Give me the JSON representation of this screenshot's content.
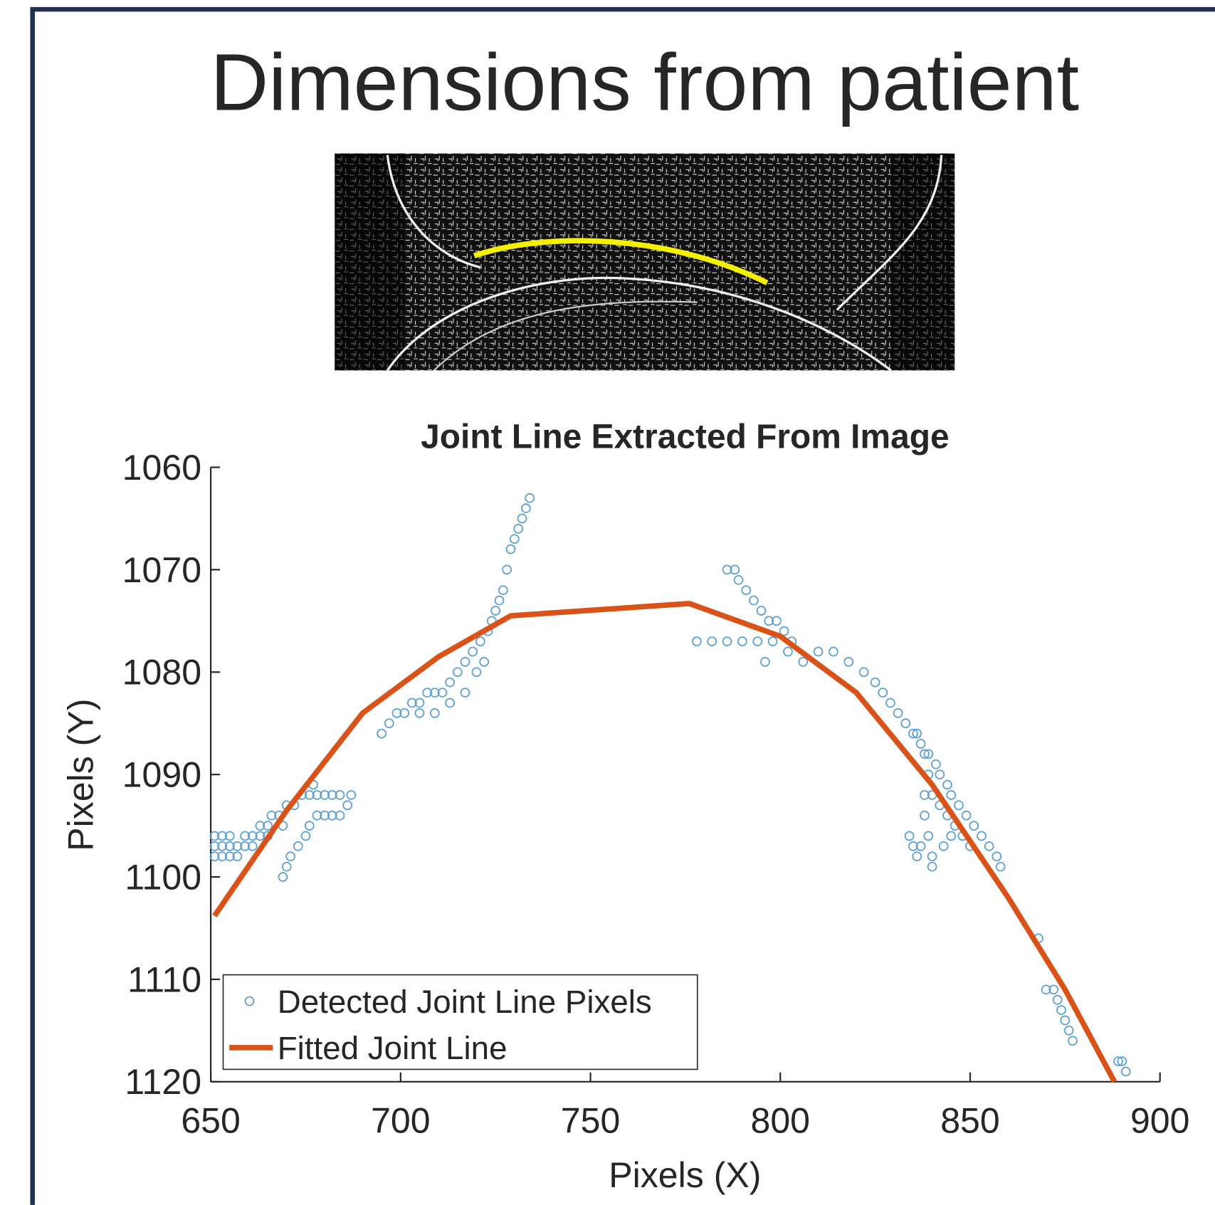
{
  "title": "Dimensions from patient",
  "chart_data": {
    "type": "scatter",
    "title": "Joint Line Extracted From Image",
    "xlabel": "Pixels (X)",
    "ylabel": "Pixels (Y)",
    "xlim": [
      650,
      900
    ],
    "ylim": [
      1060,
      1120
    ],
    "y_reversed": true,
    "xticks": [
      650,
      700,
      750,
      800,
      850,
      900
    ],
    "yticks": [
      1060,
      1070,
      1080,
      1090,
      1100,
      1110,
      1120
    ],
    "legend_position": "lower left",
    "series": [
      {
        "name": "Detected Joint Line Pixels",
        "type": "scatter",
        "color": "#5a9fd6",
        "x": [
          651,
          651,
          651,
          653,
          653,
          653,
          655,
          655,
          655,
          657,
          657,
          659,
          659,
          661,
          661,
          663,
          663,
          665,
          665,
          666,
          668,
          669,
          670,
          672,
          674,
          676,
          678,
          680,
          682,
          684,
          686,
          687,
          669,
          670,
          671,
          673,
          675,
          676,
          678,
          680,
          682,
          684,
          677,
          695,
          697,
          699,
          701,
          703,
          705,
          707,
          709,
          711,
          713,
          715,
          717,
          719,
          721,
          723,
          724,
          725,
          726,
          727,
          728,
          729,
          730,
          731,
          732,
          733,
          734,
          705,
          709,
          713,
          717,
          720,
          722,
          786,
          788,
          789,
          791,
          793,
          795,
          797,
          799,
          801,
          803,
          778,
          782,
          786,
          790,
          794,
          796,
          798,
          802,
          806,
          810,
          814,
          818,
          822,
          825,
          827,
          829,
          831,
          833,
          835,
          837,
          839,
          841,
          842,
          844,
          845,
          847,
          849,
          851,
          853,
          855,
          857,
          858,
          836,
          838,
          839,
          840,
          842,
          844,
          846,
          848,
          850,
          838,
          838,
          839,
          840,
          840,
          843,
          845,
          834,
          835,
          836,
          837,
          868,
          870,
          872,
          873,
          874,
          875,
          876,
          877,
          889,
          890,
          891
        ],
        "values": [
          1096,
          1097,
          1098,
          1096,
          1097,
          1098,
          1096,
          1097,
          1098,
          1097,
          1098,
          1096,
          1097,
          1096,
          1097,
          1095,
          1096,
          1095,
          1096,
          1094,
          1094,
          1095,
          1093,
          1093,
          1092,
          1092,
          1092,
          1092,
          1092,
          1092,
          1093,
          1092,
          1100,
          1099,
          1098,
          1097,
          1096,
          1095,
          1094,
          1094,
          1094,
          1094,
          1091,
          1086,
          1085,
          1084,
          1084,
          1083,
          1083,
          1082,
          1082,
          1082,
          1081,
          1080,
          1079,
          1078,
          1077,
          1076,
          1075,
          1074,
          1073,
          1072,
          1070,
          1068,
          1067,
          1066,
          1065,
          1064,
          1063,
          1084,
          1084,
          1083,
          1082,
          1080,
          1079,
          1070,
          1070,
          1071,
          1072,
          1073,
          1074,
          1075,
          1075,
          1076,
          1077,
          1077,
          1077,
          1077,
          1077,
          1077,
          1079,
          1077,
          1078,
          1079,
          1078,
          1078,
          1079,
          1080,
          1081,
          1082,
          1083,
          1084,
          1085,
          1086,
          1087,
          1088,
          1089,
          1090,
          1091,
          1092,
          1093,
          1094,
          1095,
          1096,
          1097,
          1098,
          1099,
          1086,
          1088,
          1090,
          1092,
          1093,
          1094,
          1095,
          1096,
          1097,
          1092,
          1094,
          1096,
          1098,
          1099,
          1097,
          1096,
          1096,
          1097,
          1098,
          1097,
          1106,
          1111,
          1111,
          1112,
          1113,
          1114,
          1115,
          1116,
          1118,
          1118,
          1119
        ]
      },
      {
        "name": "Fitted Joint Line",
        "type": "line",
        "color": "#d95319",
        "x": [
          651,
          670,
          690,
          710,
          729,
          776,
          800,
          820,
          840,
          860,
          875,
          888
        ],
        "values": [
          1103.8,
          1093.5,
          1084,
          1078.5,
          1074.5,
          1073.3,
          1076.5,
          1082,
          1091,
          1102,
          1111,
          1120
        ]
      }
    ]
  }
}
